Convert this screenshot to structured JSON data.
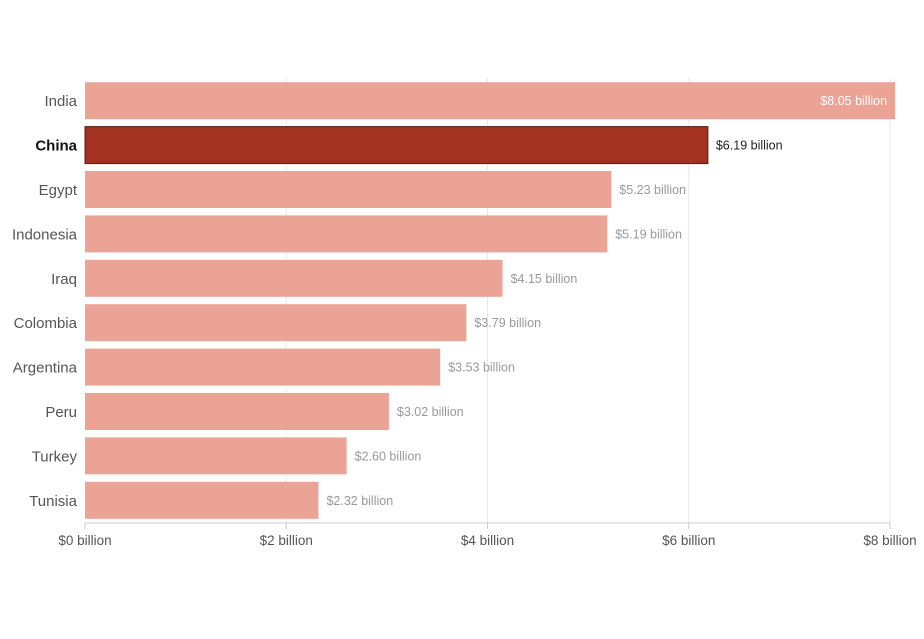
{
  "chart_data": {
    "type": "bar",
    "orientation": "horizontal",
    "categories": [
      "India",
      "China",
      "Egypt",
      "Indonesia",
      "Iraq",
      "Colombia",
      "Argentina",
      "Peru",
      "Turkey",
      "Tunisia"
    ],
    "values": [
      8.05,
      6.19,
      5.23,
      5.19,
      4.15,
      3.79,
      3.53,
      3.02,
      2.6,
      2.32
    ],
    "data_labels": [
      "$8.05 billion",
      "$6.19 billion",
      "$5.23 billion",
      "$5.19 billion",
      "$4.15 billion",
      "$3.79 billion",
      "$3.53 billion",
      "$3.02 billion",
      "$2.60 billion",
      "$2.32 billion"
    ],
    "highlight": "China",
    "title": "",
    "xlabel": "",
    "ylabel": "",
    "xlim": [
      0,
      8
    ],
    "xticks": [
      0,
      2,
      4,
      6,
      8
    ],
    "xtick_labels": [
      "$0 billion",
      "$2 billion",
      "$4 billion",
      "$6 billion",
      "$8 billion"
    ],
    "grid": true,
    "legend": "none"
  },
  "colors": {
    "bar": "#eba396",
    "highlight_bar": "#a33320",
    "highlight_stroke": "#5a1a10",
    "label_muted": "#999999",
    "label_dark": "#222222",
    "label_inside": "#ffffff",
    "category_text": "#555555",
    "category_highlight": "#111111",
    "tick_text": "#555555",
    "grid": "#e8e8e8",
    "axis": "#cccccc"
  }
}
